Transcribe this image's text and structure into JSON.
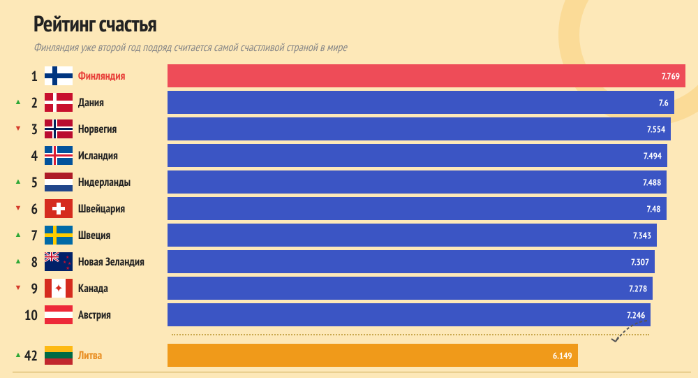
{
  "title": "Рейтинг счастья",
  "subtitle": "Финляндия уже второй год подряд считается самой счастливой страной в мире",
  "background_color": "#fde8b8",
  "bar_max": 7.769,
  "colors": {
    "bar_default": "#3b55c4",
    "bar_top": "#ee4c58",
    "bar_highlight": "#f09a1a",
    "text": "#222222",
    "subtitle": "#888888",
    "arrow_up": "#2ea836",
    "arrow_down": "#d43b2a",
    "value_text": "#ffffff",
    "separator": "#c9a84e"
  },
  "rows": [
    {
      "rank": "1",
      "trend": "",
      "country": "Финляндия",
      "value": "7.769",
      "bar_pct": 100.0,
      "bar_color": "#ee4c58",
      "label_style": "highlight",
      "flag": "fi"
    },
    {
      "rank": "2",
      "trend": "up",
      "country": "Дания",
      "value": "7.6",
      "bar_pct": 97.8,
      "bar_color": "#3b55c4",
      "label_style": "",
      "flag": "dk"
    },
    {
      "rank": "3",
      "trend": "down",
      "country": "Норвегия",
      "value": "7.554",
      "bar_pct": 97.2,
      "bar_color": "#3b55c4",
      "label_style": "",
      "flag": "no"
    },
    {
      "rank": "4",
      "trend": "",
      "country": "Исландия",
      "value": "7.494",
      "bar_pct": 96.5,
      "bar_color": "#3b55c4",
      "label_style": "",
      "flag": "is"
    },
    {
      "rank": "5",
      "trend": "up",
      "country": "Нидерланды",
      "value": "7.488",
      "bar_pct": 96.4,
      "bar_color": "#3b55c4",
      "label_style": "",
      "flag": "nl"
    },
    {
      "rank": "6",
      "trend": "down",
      "country": "Швейцария",
      "value": "7.48",
      "bar_pct": 96.3,
      "bar_color": "#3b55c4",
      "label_style": "",
      "flag": "ch"
    },
    {
      "rank": "7",
      "trend": "up",
      "country": "Швеция",
      "value": "7.343",
      "bar_pct": 94.5,
      "bar_color": "#3b55c4",
      "label_style": "",
      "flag": "se"
    },
    {
      "rank": "8",
      "trend": "up",
      "country": "Новая Зеландия",
      "value": "7.307",
      "bar_pct": 94.1,
      "bar_color": "#3b55c4",
      "label_style": "",
      "flag": "nz"
    },
    {
      "rank": "9",
      "trend": "down",
      "country": "Канада",
      "value": "7.278",
      "bar_pct": 93.7,
      "bar_color": "#3b55c4",
      "label_style": "",
      "flag": "ca"
    },
    {
      "rank": "10",
      "trend": "",
      "country": "Австрия",
      "value": "7.246",
      "bar_pct": 93.3,
      "bar_color": "#3b55c4",
      "label_style": "",
      "flag": "at"
    }
  ],
  "extra_row": {
    "rank": "42",
    "trend": "up",
    "country": "Литва",
    "value": "6.149",
    "bar_pct": 79.2,
    "bar_color": "#f09a1a",
    "label_style": "highlight2",
    "flag": "lt"
  }
}
